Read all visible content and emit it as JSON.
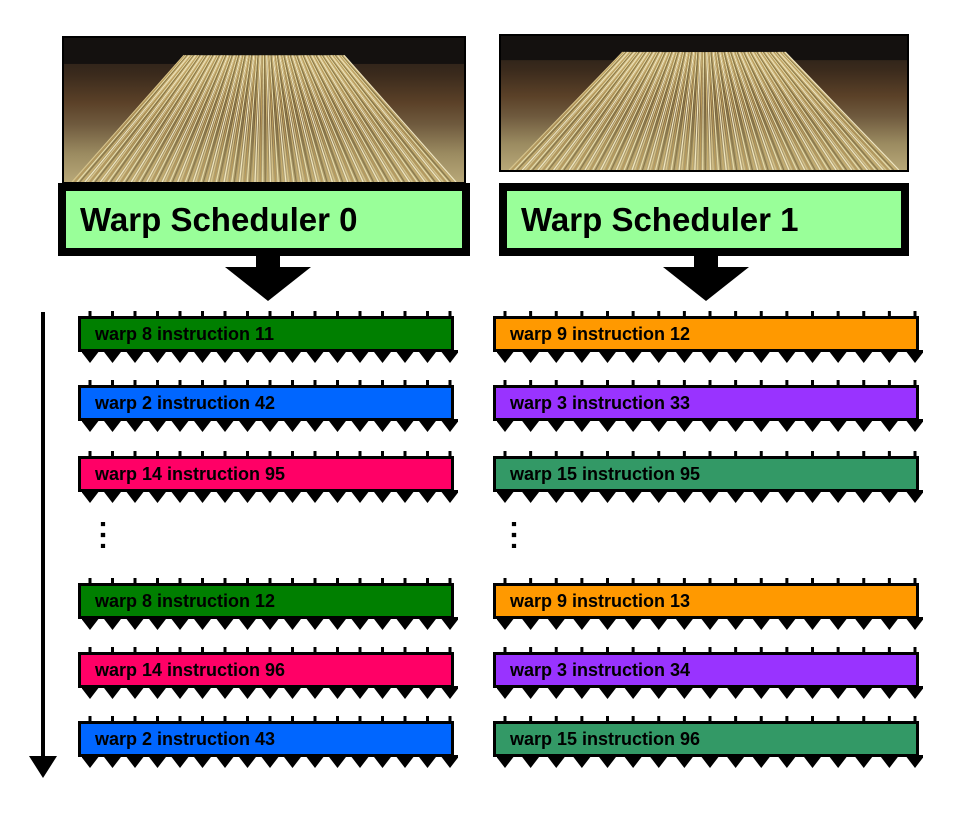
{
  "schedulers": [
    {
      "title": "Warp Scheduler 0",
      "instructions": [
        {
          "label": "warp 8 instruction 11",
          "color": "#007f00"
        },
        {
          "label": "warp 2 instruction 42",
          "color": "#0066ff"
        },
        {
          "label": "warp 14 instruction 95",
          "color": "#ff0066"
        },
        {
          "label": "warp 8 instruction 12",
          "color": "#007f00"
        },
        {
          "label": "warp 14 instruction 96",
          "color": "#ff0066"
        },
        {
          "label": "warp 2 instruction 43",
          "color": "#0066ff"
        }
      ]
    },
    {
      "title": "Warp Scheduler 1",
      "instructions": [
        {
          "label": "warp 9 instruction 12",
          "color": "#ff9900"
        },
        {
          "label": "warp 3 instruction 33",
          "color": "#9933ff"
        },
        {
          "label": "warp 15 instruction 95",
          "color": "#339966"
        },
        {
          "label": "warp 9 instruction 13",
          "color": "#ff9900"
        },
        {
          "label": "warp 3 instruction 34",
          "color": "#9933ff"
        },
        {
          "label": "warp 15 instruction 96",
          "color": "#339966"
        }
      ]
    }
  ],
  "ellipsis": ":",
  "colors": {
    "scheduler_bg": "#99ff99",
    "border": "#000000"
  }
}
